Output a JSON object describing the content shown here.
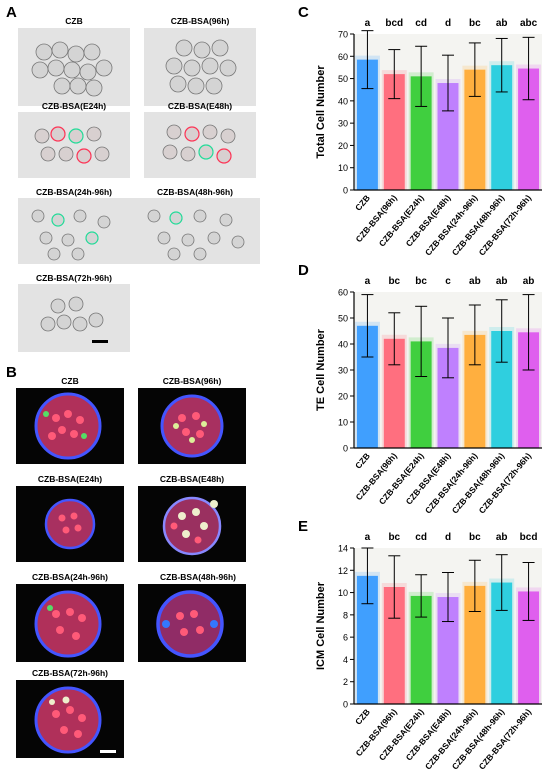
{
  "panels": {
    "A": {
      "letter": "A",
      "images": [
        {
          "label": "CZB"
        },
        {
          "label": "CZB-BSA(96h)"
        },
        {
          "label": "CZB-BSA(E24h)"
        },
        {
          "label": "CZB-BSA(E48h)"
        },
        {
          "label": "CZB-BSA(24h-96h)"
        },
        {
          "label": "CZB-BSA(48h-96h)"
        },
        {
          "label": "CZB-BSA(72h-96h)"
        }
      ]
    },
    "B": {
      "letter": "B",
      "images": [
        {
          "label": "CZB"
        },
        {
          "label": "CZB-BSA(96h)"
        },
        {
          "label": "CZB-BSA(E24h)"
        },
        {
          "label": "CZB-BSA(E48h)"
        },
        {
          "label": "CZB-BSA(24h-96h)"
        },
        {
          "label": "CZB-BSA(48h-96h)"
        },
        {
          "label": "CZB-BSA(72h-96h)"
        }
      ]
    }
  },
  "colors": [
    "#3399ff",
    "#ff6677",
    "#33cc33",
    "#bb77ff",
    "#ffaa33",
    "#22ccdd",
    "#dd55ee"
  ],
  "chart_data": [
    {
      "panel": "C",
      "type": "bar",
      "ylabel": "Total Cell Number",
      "ylim": [
        0,
        70
      ],
      "yticks": [
        0,
        10,
        20,
        30,
        40,
        50,
        60,
        70
      ],
      "categories": [
        "CZB",
        "CZB-BSA(96h)",
        "CZB-BSA(E24h)",
        "CZB-BSA(E48h)",
        "CZB-BSA(24h-96h)",
        "CZB-BSA(48h-96h)",
        "CZB-BSA(72h-96h)"
      ],
      "values": [
        58.5,
        52,
        51,
        48,
        54,
        56,
        54.5
      ],
      "errors": [
        13,
        11,
        13.5,
        12.5,
        12,
        12,
        14
      ],
      "letters": [
        "a",
        "bcd",
        "cd",
        "d",
        "bc",
        "ab",
        "abc"
      ]
    },
    {
      "panel": "D",
      "type": "bar",
      "ylabel": "TE Cell Number",
      "ylim": [
        0,
        60
      ],
      "yticks": [
        0,
        10,
        20,
        30,
        40,
        50,
        60
      ],
      "categories": [
        "CZB",
        "CZB-BSA(96h)",
        "CZB-BSA(E24h)",
        "CZB-BSA(E48h)",
        "CZB-BSA(24h-96h)",
        "CZB-BSA(48h-96h)",
        "CZB-BSA(72h-96h)"
      ],
      "values": [
        47,
        42,
        41,
        38.5,
        43.5,
        45,
        44.5
      ],
      "errors": [
        12,
        10,
        13.5,
        11.5,
        11.5,
        12,
        14.5
      ],
      "letters": [
        "a",
        "bc",
        "bc",
        "c",
        "ab",
        "ab",
        "ab"
      ]
    },
    {
      "panel": "E",
      "type": "bar",
      "ylabel": "ICM Cell Number",
      "ylim": [
        0,
        14
      ],
      "yticks": [
        0,
        2,
        4,
        6,
        8,
        10,
        12,
        14
      ],
      "categories": [
        "CZB",
        "CZB-BSA(96h)",
        "CZB-BSA(E24h)",
        "CZB-BSA(E48h)",
        "CZB-BSA(24h-96h)",
        "CZB-BSA(48h-96h)",
        "CZB-BSA(72h-96h)"
      ],
      "values": [
        11.5,
        10.5,
        9.7,
        9.6,
        10.6,
        10.9,
        10.1
      ],
      "errors": [
        2.5,
        2.8,
        1.9,
        2.2,
        2.3,
        2.5,
        2.6
      ],
      "letters": [
        "a",
        "bc",
        "cd",
        "d",
        "bc",
        "ab",
        "bcd"
      ]
    }
  ]
}
